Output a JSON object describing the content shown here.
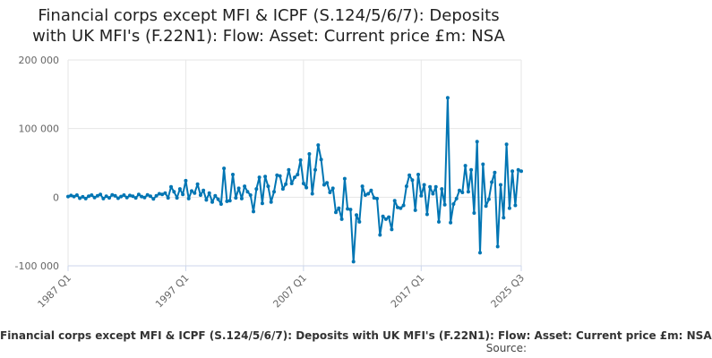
{
  "chart_data": {
    "type": "line",
    "title_line1": "Financial corps except MFI & ICPF (S.124/5/6/7): Deposits",
    "title_line2": "with UK MFI's (F.22N1): Flow: Asset: Current price £m: NSA",
    "ylim": [
      -100000,
      200000
    ],
    "y_ticks": [
      {
        "value": 200000,
        "label": "200 000"
      },
      {
        "value": 100000,
        "label": "100 000"
      },
      {
        "value": 0,
        "label": "0"
      },
      {
        "value": -100000,
        "label": "-100 000"
      }
    ],
    "x_ticks": [
      {
        "value": 1987.0,
        "label": "1987 Q1"
      },
      {
        "value": 1997.0,
        "label": "1997 Q1"
      },
      {
        "value": 2007.0,
        "label": "2007 Q1"
      },
      {
        "value": 2017.0,
        "label": "2017 Q1"
      },
      {
        "value": 2025.5,
        "label": "2025 Q3"
      }
    ],
    "xlim": [
      1987.0,
      2025.5
    ],
    "grid": true,
    "color": "#0075b3",
    "series": [
      {
        "name": "Financial corps except MFI & ICPF (S.124/5/6/7): Deposits with UK MFI's (F.22N1): Flow: Asset: Current price £m: NSA",
        "points": [
          [
            1987.0,
            1000
          ],
          [
            1987.25,
            2500
          ],
          [
            1987.5,
            1000
          ],
          [
            1987.75,
            3000
          ],
          [
            1988.0,
            -1500
          ],
          [
            1988.25,
            500
          ],
          [
            1988.5,
            -2000
          ],
          [
            1988.75,
            1500
          ],
          [
            1989.0,
            3000
          ],
          [
            1989.25,
            -500
          ],
          [
            1989.5,
            2000
          ],
          [
            1989.75,
            4000
          ],
          [
            1990.0,
            -2000
          ],
          [
            1990.25,
            1500
          ],
          [
            1990.5,
            -1000
          ],
          [
            1990.75,
            3500
          ],
          [
            1991.0,
            2000
          ],
          [
            1991.25,
            -1500
          ],
          [
            1991.5,
            1000
          ],
          [
            1991.75,
            3000
          ],
          [
            1992.0,
            -500
          ],
          [
            1992.25,
            2500
          ],
          [
            1992.5,
            1500
          ],
          [
            1992.75,
            -1000
          ],
          [
            1993.0,
            4000
          ],
          [
            1993.25,
            1000
          ],
          [
            1993.5,
            -500
          ],
          [
            1993.75,
            3500
          ],
          [
            1994.0,
            1500
          ],
          [
            1994.25,
            -2500
          ],
          [
            1994.5,
            2000
          ],
          [
            1994.75,
            5000
          ],
          [
            1995.0,
            4000
          ],
          [
            1995.25,
            6000
          ],
          [
            1995.5,
            -1000
          ],
          [
            1995.75,
            15000
          ],
          [
            1996.0,
            8000
          ],
          [
            1996.25,
            -1000
          ],
          [
            1996.5,
            12000
          ],
          [
            1996.75,
            4000
          ],
          [
            1997.0,
            24000
          ],
          [
            1997.25,
            -2000
          ],
          [
            1997.5,
            9000
          ],
          [
            1997.75,
            6000
          ],
          [
            1998.0,
            19000
          ],
          [
            1998.25,
            3000
          ],
          [
            1998.5,
            10000
          ],
          [
            1998.75,
            -4000
          ],
          [
            1999.0,
            6000
          ],
          [
            1999.25,
            -7000
          ],
          [
            1999.5,
            2000
          ],
          [
            1999.75,
            -3000
          ],
          [
            2000.0,
            -10000
          ],
          [
            2000.25,
            42000
          ],
          [
            2000.5,
            -6000
          ],
          [
            2000.75,
            -5000
          ],
          [
            2001.0,
            33000
          ],
          [
            2001.25,
            -1000
          ],
          [
            2001.5,
            13000
          ],
          [
            2001.75,
            -2000
          ],
          [
            2002.0,
            16000
          ],
          [
            2002.25,
            8000
          ],
          [
            2002.5,
            3000
          ],
          [
            2002.75,
            -21000
          ],
          [
            2003.0,
            12000
          ],
          [
            2003.25,
            29000
          ],
          [
            2003.5,
            -9000
          ],
          [
            2003.75,
            30000
          ],
          [
            2004.0,
            16000
          ],
          [
            2004.25,
            -7000
          ],
          [
            2004.5,
            8000
          ],
          [
            2004.75,
            32000
          ],
          [
            2005.0,
            31000
          ],
          [
            2005.25,
            12000
          ],
          [
            2005.5,
            19000
          ],
          [
            2005.75,
            40000
          ],
          [
            2006.0,
            20000
          ],
          [
            2006.25,
            29000
          ],
          [
            2006.5,
            33000
          ],
          [
            2006.75,
            54000
          ],
          [
            2007.0,
            20000
          ],
          [
            2007.25,
            14000
          ],
          [
            2007.5,
            63000
          ],
          [
            2007.75,
            5000
          ],
          [
            2008.0,
            40000
          ],
          [
            2008.25,
            76000
          ],
          [
            2008.5,
            55000
          ],
          [
            2008.75,
            18000
          ],
          [
            2009.0,
            21000
          ],
          [
            2009.25,
            7000
          ],
          [
            2009.5,
            13000
          ],
          [
            2009.75,
            -22000
          ],
          [
            2010.0,
            -16000
          ],
          [
            2010.25,
            -32000
          ],
          [
            2010.5,
            27000
          ],
          [
            2010.75,
            -17000
          ],
          [
            2011.0,
            -18000
          ],
          [
            2011.25,
            -94000
          ],
          [
            2011.5,
            -26000
          ],
          [
            2011.75,
            -36000
          ],
          [
            2012.0,
            16000
          ],
          [
            2012.25,
            3000
          ],
          [
            2012.5,
            5000
          ],
          [
            2012.75,
            10000
          ],
          [
            2013.0,
            -1000
          ],
          [
            2013.25,
            -2000
          ],
          [
            2013.5,
            -55000
          ],
          [
            2013.75,
            -28000
          ],
          [
            2014.0,
            -32000
          ],
          [
            2014.25,
            -29000
          ],
          [
            2014.5,
            -47000
          ],
          [
            2014.75,
            -5000
          ],
          [
            2015.0,
            -15000
          ],
          [
            2015.25,
            -16000
          ],
          [
            2015.5,
            -12000
          ],
          [
            2015.75,
            16000
          ],
          [
            2016.0,
            32000
          ],
          [
            2016.25,
            25000
          ],
          [
            2016.5,
            -19000
          ],
          [
            2016.75,
            33000
          ],
          [
            2017.0,
            2000
          ],
          [
            2017.25,
            18000
          ],
          [
            2017.5,
            -25000
          ],
          [
            2017.75,
            15000
          ],
          [
            2018.0,
            5000
          ],
          [
            2018.25,
            15000
          ],
          [
            2018.5,
            -36000
          ],
          [
            2018.75,
            12000
          ],
          [
            2019.0,
            -11000
          ],
          [
            2019.25,
            145000
          ],
          [
            2019.5,
            -37000
          ],
          [
            2019.75,
            -10000
          ],
          [
            2020.0,
            -2000
          ],
          [
            2020.25,
            10000
          ],
          [
            2020.5,
            7000
          ],
          [
            2020.75,
            46000
          ],
          [
            2021.0,
            8000
          ],
          [
            2021.25,
            40000
          ],
          [
            2021.5,
            -23000
          ],
          [
            2021.75,
            81000
          ],
          [
            2022.0,
            -81000
          ],
          [
            2022.25,
            48000
          ],
          [
            2022.5,
            -13000
          ],
          [
            2022.75,
            -3000
          ],
          [
            2023.0,
            22000
          ],
          [
            2023.25,
            36000
          ],
          [
            2023.5,
            -72000
          ],
          [
            2023.75,
            18000
          ],
          [
            2024.0,
            -30000
          ],
          [
            2024.25,
            77000
          ],
          [
            2024.5,
            -16000
          ],
          [
            2024.75,
            38000
          ],
          [
            2025.0,
            -12000
          ],
          [
            2025.25,
            40000
          ],
          [
            2025.5,
            38000
          ]
        ]
      }
    ]
  },
  "legend": {
    "text": "Financial corps except MFI & ICPF (S.124/5/6/7): Deposits with UK MFI's (F.22N1): Flow: Asset: Current price £m: NSA"
  },
  "source_label": "Source:"
}
